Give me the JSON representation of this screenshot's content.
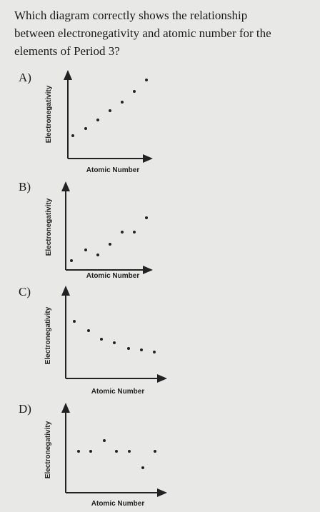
{
  "question": {
    "lines": [
      "Which diagram correctly shows the relationship",
      "between electronegativity and atomic number for the",
      "elements of Period 3?"
    ]
  },
  "options": [
    {
      "label": "A)",
      "y_axis": "Electronegativity",
      "x_axis": "Atomic Number"
    },
    {
      "label": "B)",
      "y_axis": "Electronegativity",
      "x_axis": "Atomic Number"
    },
    {
      "label": "C)",
      "y_axis": "Electronegativity",
      "x_axis": "Atomic Number"
    },
    {
      "label": "D)",
      "y_axis": "Electronegativity",
      "x_axis": "Atomic Number"
    }
  ]
}
